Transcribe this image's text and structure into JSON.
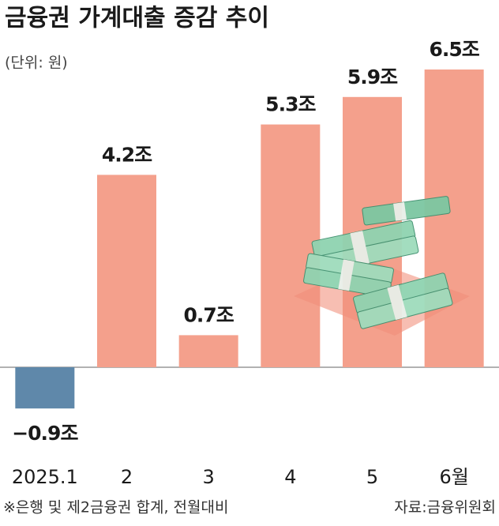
{
  "chart_data": {
    "type": "bar",
    "title": "금융권 가계대출 증감 추이",
    "subtitle": "(단위: 원)",
    "categories": [
      "2025.1",
      "2",
      "3",
      "4",
      "5",
      "6월"
    ],
    "values": [
      -0.9,
      4.2,
      0.7,
      5.3,
      5.9,
      6.5
    ],
    "value_labels": [
      "−0.9조",
      "4.2조",
      "0.7조",
      "5.3조",
      "5.9조",
      "6.5조"
    ],
    "color": "#f4a08c",
    "negative_color": "#5f88aa",
    "ylim": [
      -1.5,
      7
    ],
    "note": "※은행 및 제2금융권 합계, 전월대비",
    "source": "자료:금융위원회"
  }
}
